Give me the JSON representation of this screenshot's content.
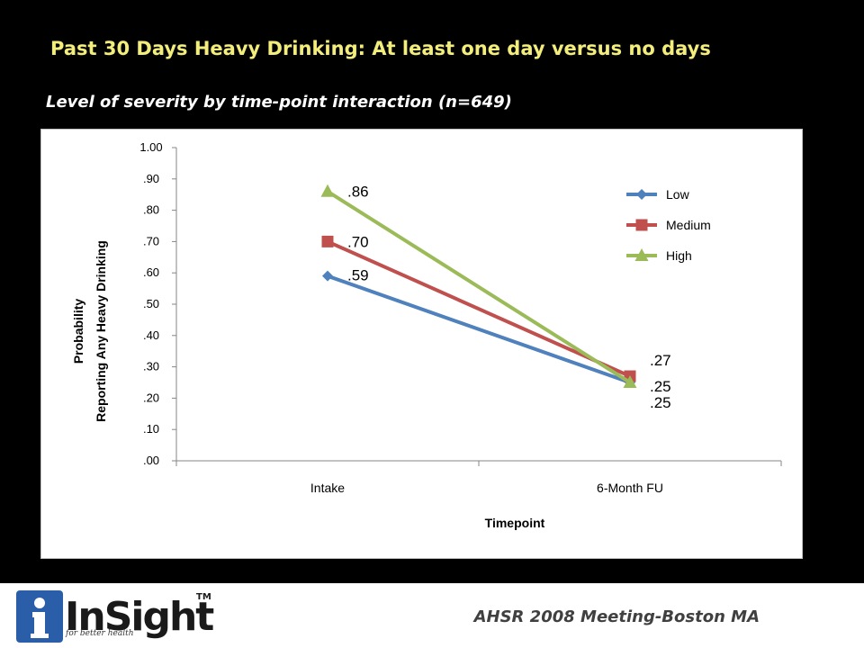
{
  "slide": {
    "title": "Past 30 Days Heavy Drinking: At least one day versus no days",
    "subtitle": "Level of severity by time-point interaction (n=649)"
  },
  "footer": {
    "logo_text": "InSight",
    "logo_trademark": "TM",
    "logo_tagline": "for better health",
    "meeting": "AHSR 2008 Meeting-Boston  MA"
  },
  "colors": {
    "title": "#f3ee7c",
    "low": "#4f81bd",
    "medium": "#c0504d",
    "high": "#9bbb59",
    "logo_blue": "#2b5ea8"
  },
  "chart_data": {
    "type": "line",
    "categories": [
      "Intake",
      "6-Month FU"
    ],
    "xlabel": "Timepoint",
    "ylabel_lines": [
      "Probability",
      "Reporting Any Heavy Drinking"
    ],
    "ylim": [
      0,
      1
    ],
    "yticks": [
      ".00",
      ".10",
      ".20",
      ".30",
      ".40",
      ".50",
      ".60",
      ".70",
      ".80",
      ".90",
      "1.00"
    ],
    "grid": false,
    "legend_position": "right",
    "series": [
      {
        "name": "Low",
        "values": [
          0.59,
          0.25
        ],
        "labels": [
          ".59",
          ".25"
        ],
        "marker": "diamond",
        "color": "#4f81bd"
      },
      {
        "name": "Medium",
        "values": [
          0.7,
          0.27
        ],
        "labels": [
          ".70",
          ".27"
        ],
        "marker": "square",
        "color": "#c0504d"
      },
      {
        "name": "High",
        "values": [
          0.86,
          0.25
        ],
        "labels": [
          ".86",
          ".25"
        ],
        "marker": "triangle",
        "color": "#9bbb59"
      }
    ]
  }
}
